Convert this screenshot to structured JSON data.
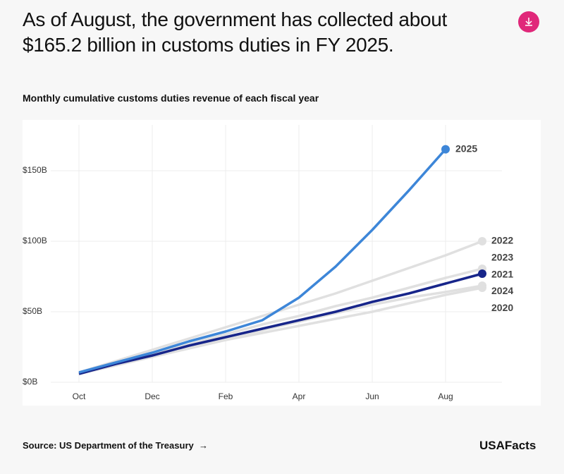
{
  "chart_data": {
    "type": "line",
    "title": "As of August, the government has collected about $165.2 billion in customs duties in FY 2025.",
    "subtitle": "Monthly cumulative customs duties revenue of each fiscal year",
    "source": "Source: US Department of the Treasury",
    "brand": "USAFacts",
    "categories": [
      "Oct",
      null,
      "Dec",
      null,
      "Feb",
      null,
      "Apr",
      null,
      "Jun",
      null,
      "Aug",
      null
    ],
    "ylim": [
      0,
      185
    ],
    "yticks": [
      {
        "value": 0,
        "label": "$0B"
      },
      {
        "value": 50,
        "label": "$50B"
      },
      {
        "value": 100,
        "label": "$100B"
      },
      {
        "value": 150,
        "label": "$150B"
      }
    ],
    "grid": true,
    "series": [
      {
        "name": "2020",
        "color": "#e0e0e0",
        "values": [
          6,
          12,
          18,
          24,
          30,
          35,
          40,
          45,
          50,
          56,
          62,
          67
        ]
      },
      {
        "name": "2022",
        "color": "#e0e0e0",
        "values": [
          7,
          15,
          23,
          31,
          39,
          47,
          55,
          63,
          72,
          81,
          90,
          100
        ]
      },
      {
        "name": "2023",
        "color": "#e0e0e0",
        "values": [
          7,
          13,
          20,
          27,
          34,
          41,
          47,
          54,
          60,
          67,
          74,
          80.5
        ]
      },
      {
        "name": "2024",
        "color": "#e0e0e0",
        "values": [
          6,
          12,
          19,
          25,
          31,
          37,
          43,
          49,
          55,
          60,
          64,
          68.5
        ]
      },
      {
        "name": "2021",
        "color": "#17258a",
        "values": [
          6,
          13,
          19,
          26,
          32,
          38,
          44,
          50,
          57,
          63,
          70,
          77
        ]
      },
      {
        "name": "2025",
        "color": "#3d86d8",
        "values": [
          7,
          14,
          21,
          29,
          36,
          44,
          60,
          82,
          108,
          136,
          165.2,
          null
        ]
      }
    ]
  }
}
